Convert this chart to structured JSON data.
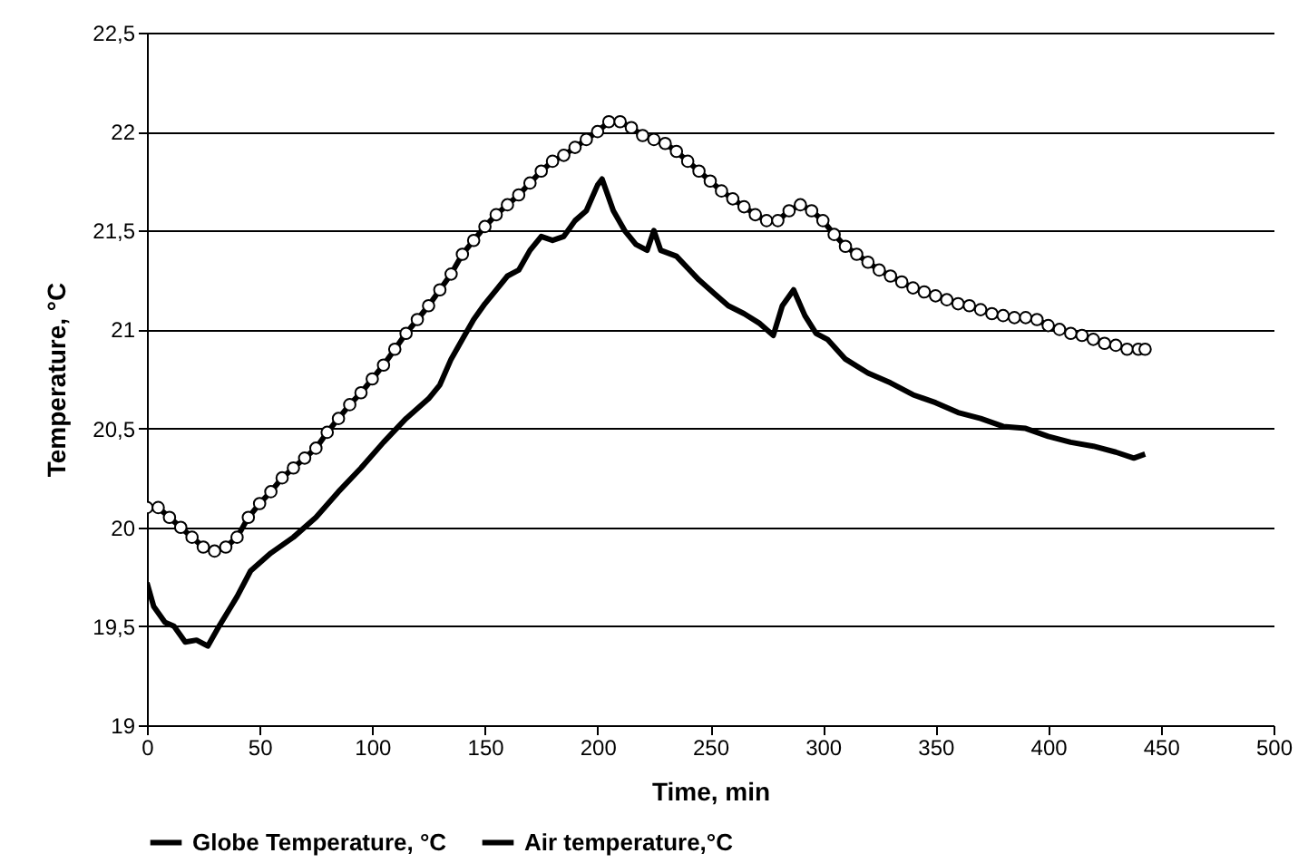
{
  "chart_data": {
    "type": "line",
    "xlabel": "Time, min",
    "ylabel": "Temperature, °C",
    "xlim": [
      0,
      500
    ],
    "xticks": [
      0,
      50,
      100,
      150,
      200,
      250,
      300,
      350,
      400,
      450,
      500
    ],
    "ylim": [
      19,
      22.5
    ],
    "yticks": [
      {
        "value": 19,
        "label": "19"
      },
      {
        "value": 19.5,
        "label": "19,5"
      },
      {
        "value": 20,
        "label": "20"
      },
      {
        "value": 20.5,
        "label": "20,5"
      },
      {
        "value": 21,
        "label": "21"
      },
      {
        "value": 21.5,
        "label": "21,5"
      },
      {
        "value": 22,
        "label": "22"
      },
      {
        "value": 22.5,
        "label": "22,5"
      }
    ],
    "grid": "y",
    "legend": "bottom",
    "line_style": "solid",
    "series": [
      {
        "name": "Globe Temperature, °C",
        "color": "#000000",
        "marker": "circle",
        "x": [
          0,
          5,
          10,
          15,
          20,
          25,
          30,
          35,
          40,
          45,
          50,
          55,
          60,
          65,
          70,
          75,
          80,
          85,
          90,
          95,
          100,
          105,
          110,
          115,
          120,
          125,
          130,
          135,
          140,
          145,
          150,
          155,
          160,
          165,
          170,
          175,
          180,
          185,
          190,
          195,
          200,
          205,
          210,
          215,
          220,
          225,
          230,
          235,
          240,
          245,
          250,
          255,
          260,
          265,
          270,
          275,
          280,
          285,
          290,
          295,
          300,
          305,
          310,
          315,
          320,
          325,
          330,
          335,
          340,
          345,
          350,
          355,
          360,
          365,
          370,
          375,
          380,
          385,
          390,
          395,
          400,
          405,
          410,
          415,
          420,
          425,
          430,
          435,
          440,
          443
        ],
        "values": [
          20.1,
          20.1,
          20.05,
          20.0,
          19.95,
          19.9,
          19.88,
          19.9,
          19.95,
          20.05,
          20.12,
          20.18,
          20.25,
          20.3,
          20.35,
          20.4,
          20.48,
          20.55,
          20.62,
          20.68,
          20.75,
          20.82,
          20.9,
          20.98,
          21.05,
          21.12,
          21.2,
          21.28,
          21.38,
          21.45,
          21.52,
          21.58,
          21.63,
          21.68,
          21.74,
          21.8,
          21.85,
          21.88,
          21.92,
          21.96,
          22.0,
          22.05,
          22.05,
          22.02,
          21.98,
          21.96,
          21.94,
          21.9,
          21.85,
          21.8,
          21.75,
          21.7,
          21.66,
          21.62,
          21.58,
          21.55,
          21.55,
          21.6,
          21.63,
          21.6,
          21.55,
          21.48,
          21.42,
          21.38,
          21.34,
          21.3,
          21.27,
          21.24,
          21.21,
          21.19,
          21.17,
          21.15,
          21.13,
          21.12,
          21.1,
          21.08,
          21.07,
          21.06,
          21.06,
          21.05,
          21.02,
          21.0,
          20.98,
          20.97,
          20.95,
          20.93,
          20.92,
          20.9,
          20.9,
          20.9
        ]
      },
      {
        "name": "Air temperature,°C",
        "color": "#000000",
        "marker": "none",
        "x": [
          0,
          3,
          8,
          12,
          17,
          22,
          27,
          32,
          40,
          46,
          55,
          65,
          75,
          85,
          95,
          105,
          115,
          125,
          130,
          135,
          140,
          145,
          150,
          155,
          160,
          165,
          170,
          175,
          180,
          185,
          190,
          195,
          200,
          202,
          207,
          212,
          217,
          222,
          225,
          228,
          235,
          245,
          252,
          258,
          265,
          272,
          278,
          282,
          287,
          292,
          297,
          302,
          310,
          320,
          330,
          340,
          350,
          360,
          370,
          380,
          390,
          400,
          410,
          420,
          430,
          438,
          443
        ],
        "values": [
          19.72,
          19.6,
          19.52,
          19.5,
          19.42,
          19.43,
          19.4,
          19.5,
          19.65,
          19.78,
          19.87,
          19.95,
          20.05,
          20.18,
          20.3,
          20.43,
          20.55,
          20.65,
          20.72,
          20.85,
          20.95,
          21.05,
          21.13,
          21.2,
          21.27,
          21.3,
          21.4,
          21.47,
          21.45,
          21.47,
          21.55,
          21.6,
          21.73,
          21.76,
          21.6,
          21.5,
          21.43,
          21.4,
          21.5,
          21.4,
          21.37,
          21.25,
          21.18,
          21.12,
          21.08,
          21.03,
          20.97,
          21.12,
          21.2,
          21.07,
          20.98,
          20.95,
          20.85,
          20.78,
          20.73,
          20.67,
          20.63,
          20.58,
          20.55,
          20.51,
          20.5,
          20.46,
          20.43,
          20.41,
          20.38,
          20.35,
          20.37
        ]
      }
    ]
  }
}
